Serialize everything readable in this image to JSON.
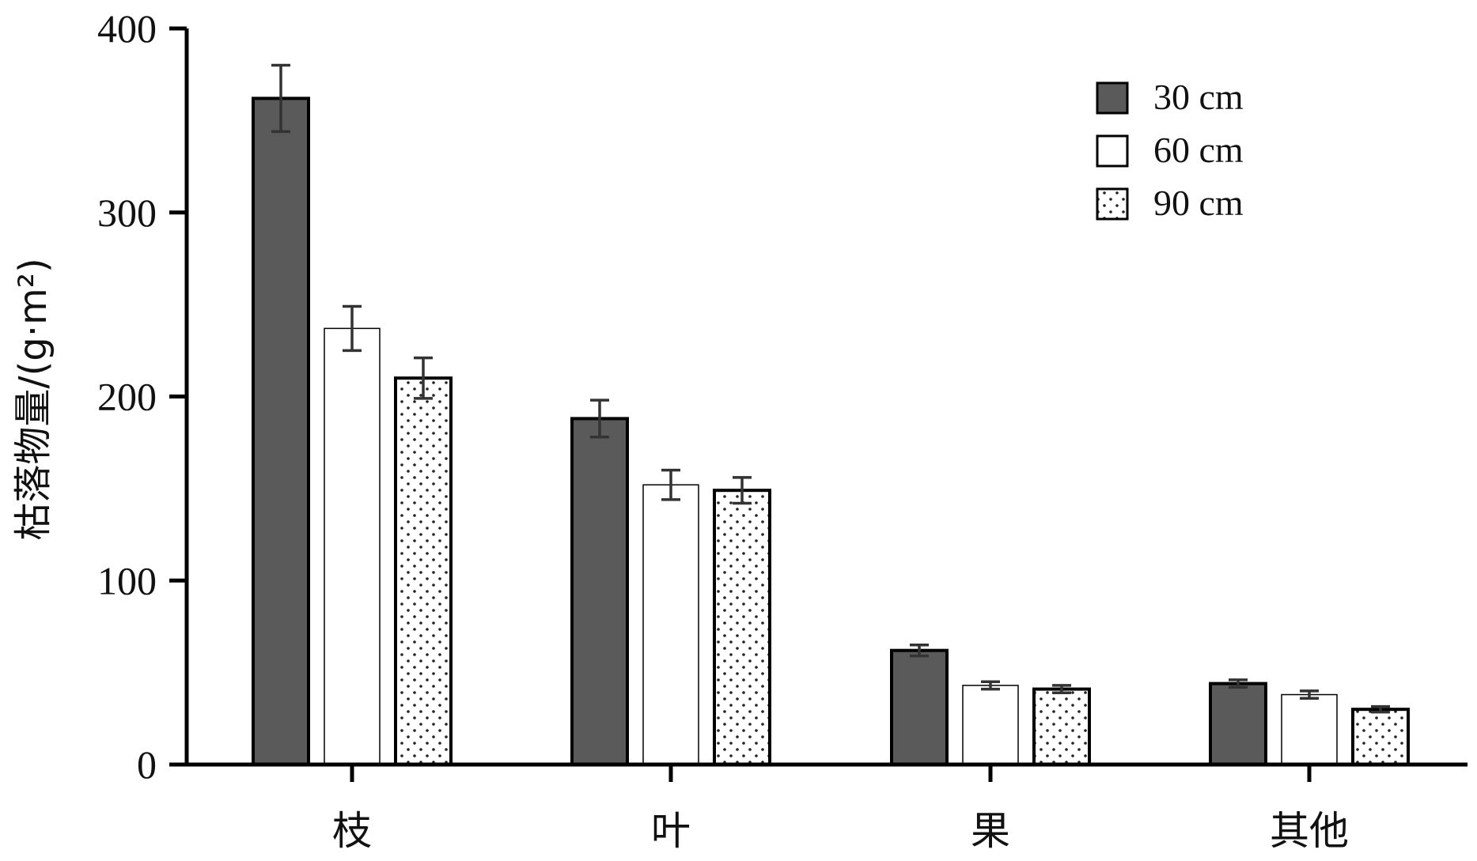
{
  "chart_data": {
    "type": "bar",
    "categories": [
      "枝",
      "叶",
      "果",
      "其他"
    ],
    "series": [
      {
        "name": "30 cm",
        "values": [
          362,
          188,
          62,
          44
        ],
        "errors": [
          18,
          10,
          3,
          2
        ],
        "fill": "#5a5a5a",
        "pattern": "solid"
      },
      {
        "name": "60 cm",
        "values": [
          237,
          152,
          43,
          38
        ],
        "errors": [
          12,
          8,
          2,
          2
        ],
        "fill": "#ffffff",
        "pattern": "none"
      },
      {
        "name": "90 cm",
        "values": [
          210,
          149,
          41,
          30
        ],
        "errors": [
          11,
          7,
          2,
          1.5
        ],
        "fill": "#ffffff",
        "pattern": "dots"
      }
    ],
    "ylabel": "枯落物量/(g·m²)",
    "ylim": [
      0,
      400
    ],
    "yticks": [
      0,
      100,
      200,
      300,
      400
    ],
    "grid": false,
    "legend_position": "top-right"
  }
}
